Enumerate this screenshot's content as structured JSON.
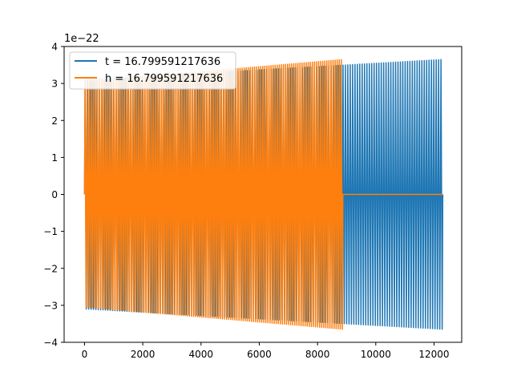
{
  "chart_data": {
    "type": "line",
    "title": "",
    "xlabel": "",
    "ylabel": "",
    "y_offset_label": "1e−22",
    "xlim": [
      -700,
      12950
    ],
    "ylim": [
      -4.0,
      4.0
    ],
    "x_ticks": [
      0,
      2000,
      4000,
      6000,
      8000,
      10000,
      12000
    ],
    "x_tick_labels": [
      "0",
      "2000",
      "4000",
      "6000",
      "8000",
      "10000",
      "12000"
    ],
    "y_ticks": [
      -4,
      -3,
      -2,
      -1,
      0,
      1,
      2,
      3,
      4
    ],
    "y_tick_labels": [
      "−4",
      "−3",
      "−2",
      "−1",
      "0",
      "1",
      "2",
      "3",
      "4"
    ],
    "grid": false,
    "legend_position": "upper-left",
    "series": [
      {
        "name": "t = 16.799591217636",
        "color": "#1f77b4",
        "x_start": 0,
        "x_end": 12300,
        "cycles": 150,
        "amplitude_start": 3.1,
        "amplitude_end": 3.65,
        "tail_after_x": null
      },
      {
        "name": "h = 16.799591217636",
        "color": "#ff7f0e",
        "x_start": 0,
        "x_end": 8870,
        "cycles": 125,
        "amplitude_start": 3.05,
        "amplitude_end": 3.65,
        "tail_after_x": 12300,
        "tail_value": 0
      }
    ]
  }
}
